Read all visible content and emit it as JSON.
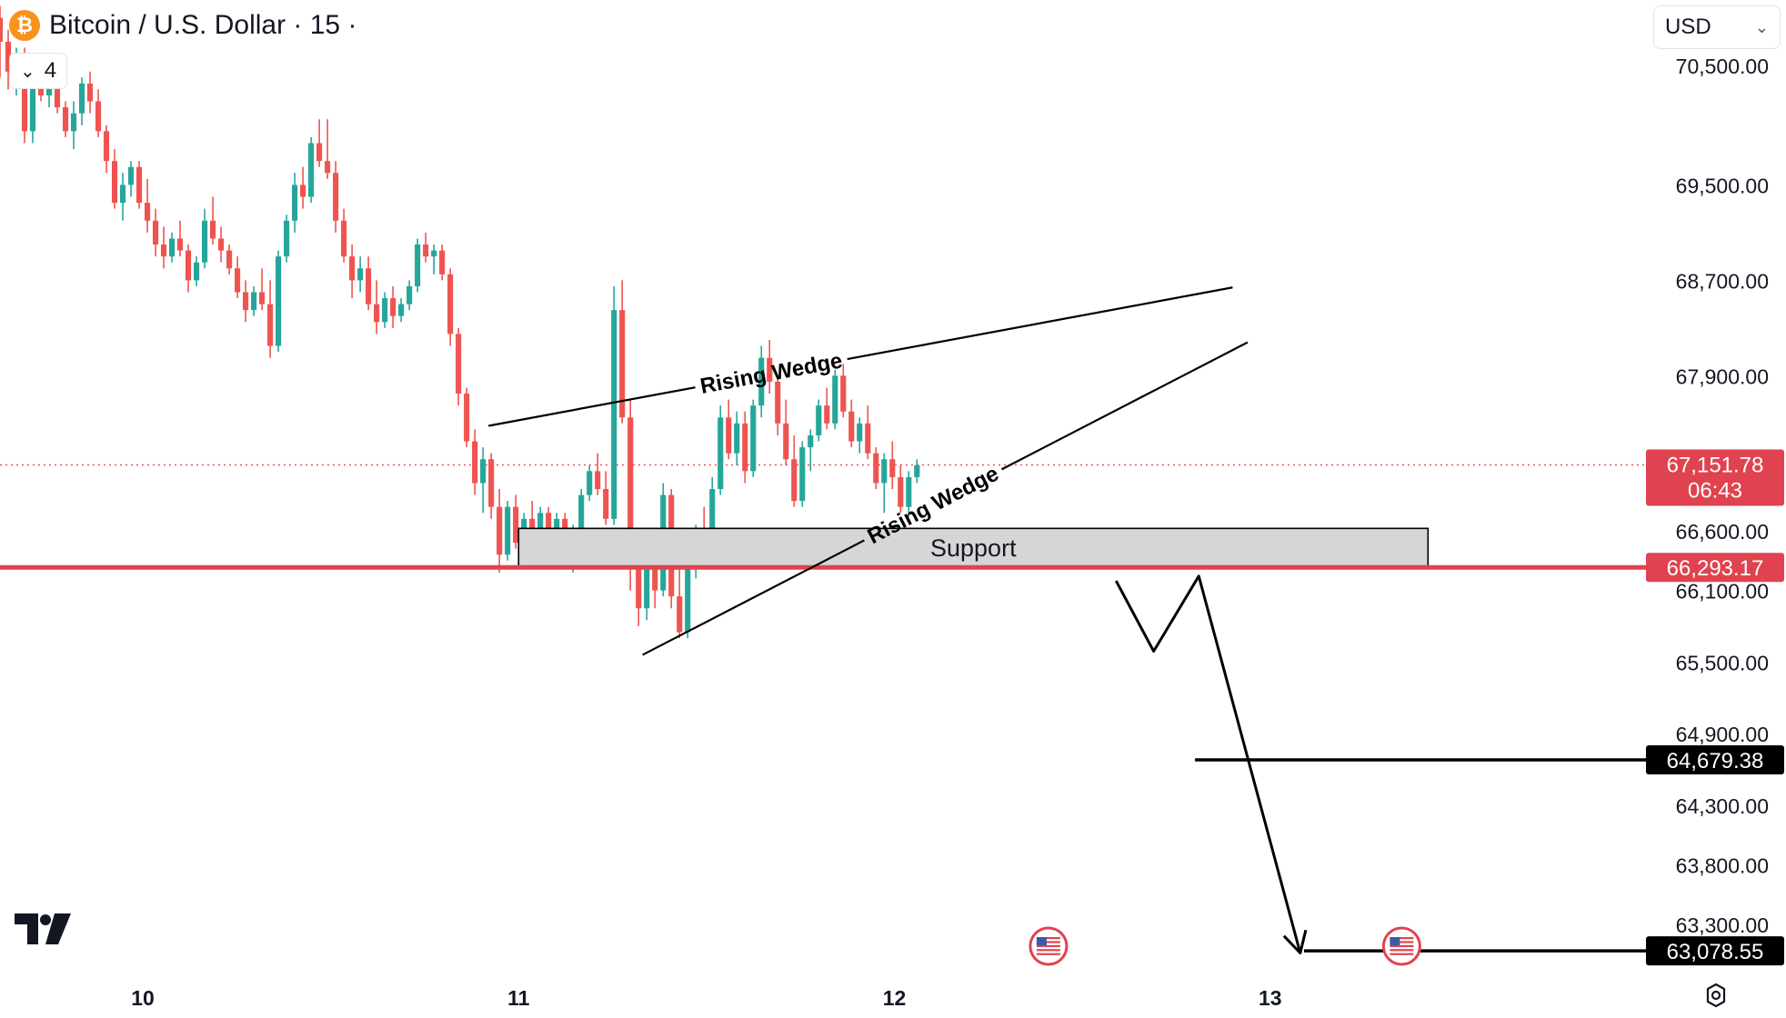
{
  "header": {
    "title": "Bitcoin / U.S. Dollar · 15 ·",
    "icon": "bitcoin-icon",
    "collapse_count": "4"
  },
  "currency_select": {
    "value": "USD"
  },
  "colors": {
    "up": "#26a69a",
    "down": "#ef5350",
    "support_line": "#e0434f",
    "support_zone": "#d6d6d6",
    "label_black": "#000000"
  },
  "chart_data": {
    "type": "candlestick",
    "x_ticks": [
      "10",
      "11",
      "12",
      "13"
    ],
    "y_ticks": [
      70500,
      69500,
      68700,
      67900,
      66600,
      66100,
      65500,
      64900,
      64300,
      63800,
      63300
    ],
    "y_tick_labels": [
      "70,500.00",
      "69,500.00",
      "68,700.00",
      "67,900.00",
      "66,600.00",
      "66,100.00",
      "65,500.00",
      "64,900.00",
      "64,300.00",
      "63,800.00",
      "63,300.00"
    ],
    "price_labels": [
      {
        "value": 67151.78,
        "text": "67,151.78",
        "sub": "06:43",
        "style": "last-price"
      },
      {
        "value": 66293.17,
        "text": "66,293.17",
        "style": "support"
      },
      {
        "value": 64679.38,
        "text": "64,679.38",
        "style": "target"
      },
      {
        "value": 63078.55,
        "text": "63,078.55",
        "style": "target"
      }
    ],
    "current_price": 67151.78,
    "countdown": "06:43",
    "support_level": 66293.17,
    "support_zone": {
      "low": 66293.17,
      "high": 66620,
      "from_day": 11.0,
      "to_day": 13.42,
      "label": "Support"
    },
    "targets": [
      64679.38,
      63078.55
    ],
    "annotations": [
      {
        "label": "Rising Wedge",
        "line": "upper",
        "from": [
          10.92,
          67480
        ],
        "to": [
          12.9,
          68640
        ]
      },
      {
        "label": "Rising Wedge",
        "line": "lower",
        "from": [
          11.33,
          65560
        ],
        "to": [
          12.94,
          68180
        ]
      }
    ],
    "projection_path": [
      [
        12.59,
        66180
      ],
      [
        12.69,
        65590
      ],
      [
        12.81,
        66220
      ],
      [
        13.08,
        63060
      ]
    ],
    "events": [
      {
        "day": 12.41,
        "icon": "us-flag-icon"
      },
      {
        "day": 13.35,
        "icon": "us-flag-icon"
      }
    ],
    "x_range": [
      9.62,
      14.0
    ],
    "y_range": [
      62820,
      71050
    ],
    "ohlc": [
      [
        70900,
        71000,
        70400,
        70700
      ],
      [
        70700,
        70800,
        70300,
        70450
      ],
      [
        70450,
        70650,
        70250,
        70600
      ],
      [
        70600,
        70650,
        69850,
        69950
      ],
      [
        69950,
        70500,
        69850,
        70400
      ],
      [
        70400,
        70500,
        70200,
        70250
      ],
      [
        70250,
        70500,
        70150,
        70450
      ],
      [
        70450,
        70500,
        70100,
        70150
      ],
      [
        70150,
        70200,
        69900,
        69950
      ],
      [
        69950,
        70200,
        69800,
        70100
      ],
      [
        70100,
        70400,
        70000,
        70350
      ],
      [
        70350,
        70450,
        70100,
        70200
      ],
      [
        70200,
        70300,
        69900,
        69950
      ],
      [
        69950,
        70000,
        69600,
        69700
      ],
      [
        69700,
        69800,
        69300,
        69350
      ],
      [
        69350,
        69600,
        69200,
        69500
      ],
      [
        69500,
        69700,
        69400,
        69650
      ],
      [
        69650,
        69700,
        69300,
        69350
      ],
      [
        69350,
        69550,
        69100,
        69200
      ],
      [
        69200,
        69300,
        68900,
        69000
      ],
      [
        69000,
        69150,
        68800,
        68900
      ],
      [
        68900,
        69100,
        68850,
        69050
      ],
      [
        69050,
        69200,
        68900,
        68950
      ],
      [
        68950,
        69000,
        68600,
        68700
      ],
      [
        68700,
        68900,
        68650,
        68850
      ],
      [
        68850,
        69300,
        68800,
        69200
      ],
      [
        69200,
        69400,
        69000,
        69050
      ],
      [
        69050,
        69150,
        68850,
        68950
      ],
      [
        68950,
        69000,
        68750,
        68800
      ],
      [
        68800,
        68900,
        68550,
        68600
      ],
      [
        68600,
        68700,
        68350,
        68450
      ],
      [
        68450,
        68650,
        68400,
        68600
      ],
      [
        68600,
        68800,
        68450,
        68500
      ],
      [
        68500,
        68700,
        68050,
        68150
      ],
      [
        68150,
        68950,
        68100,
        68900
      ],
      [
        68900,
        69250,
        68850,
        69200
      ],
      [
        69200,
        69600,
        69100,
        69500
      ],
      [
        69500,
        69650,
        69300,
        69400
      ],
      [
        69400,
        69900,
        69350,
        69850
      ],
      [
        69850,
        70050,
        69650,
        69700
      ],
      [
        69700,
        70050,
        69550,
        69600
      ],
      [
        69600,
        69700,
        69100,
        69200
      ],
      [
        69200,
        69300,
        68850,
        68900
      ],
      [
        68900,
        69000,
        68550,
        68700
      ],
      [
        68700,
        68900,
        68600,
        68800
      ],
      [
        68800,
        68900,
        68450,
        68500
      ],
      [
        68500,
        68700,
        68250,
        68350
      ],
      [
        68350,
        68600,
        68300,
        68550
      ],
      [
        68550,
        68650,
        68300,
        68400
      ],
      [
        68400,
        68550,
        68350,
        68500
      ],
      [
        68500,
        68700,
        68450,
        68650
      ],
      [
        68650,
        69050,
        68600,
        69000
      ],
      [
        69000,
        69100,
        68850,
        68900
      ],
      [
        68900,
        69000,
        68750,
        68950
      ],
      [
        68950,
        69000,
        68700,
        68750
      ],
      [
        68750,
        68800,
        68150,
        68250
      ],
      [
        68250,
        68300,
        67650,
        67750
      ],
      [
        67750,
        67800,
        67300,
        67350
      ],
      [
        67350,
        67450,
        66900,
        67000
      ],
      [
        67000,
        67300,
        66750,
        67200
      ],
      [
        67200,
        67250,
        66700,
        66800
      ],
      [
        66800,
        66950,
        66250,
        66400
      ],
      [
        66400,
        66850,
        66350,
        66800
      ],
      [
        66800,
        66900,
        66450,
        66500
      ],
      [
        66500,
        66750,
        66400,
        66700
      ],
      [
        66700,
        66850,
        66550,
        66600
      ],
      [
        66600,
        66800,
        66550,
        66750
      ],
      [
        66750,
        66800,
        66500,
        66550
      ],
      [
        66550,
        66750,
        66450,
        66700
      ],
      [
        66700,
        66750,
        66350,
        66400
      ],
      [
        66400,
        66650,
        66250,
        66600
      ],
      [
        66600,
        66950,
        66550,
        66900
      ],
      [
        66900,
        67150,
        66850,
        67100
      ],
      [
        67100,
        67250,
        66900,
        66950
      ],
      [
        66950,
        67100,
        66650,
        66700
      ],
      [
        66700,
        68650,
        66650,
        68450
      ],
      [
        68450,
        68700,
        67500,
        67550
      ],
      [
        67550,
        67700,
        66100,
        66300
      ],
      [
        66300,
        66600,
        65800,
        65950
      ],
      [
        65950,
        66400,
        65850,
        66300
      ],
      [
        66300,
        66400,
        65950,
        66100
      ],
      [
        66100,
        67000,
        66050,
        66900
      ],
      [
        66900,
        66950,
        65950,
        66050
      ],
      [
        66050,
        66300,
        65700,
        65750
      ],
      [
        65750,
        66500,
        65700,
        66400
      ],
      [
        66400,
        66650,
        66200,
        66600
      ],
      [
        66600,
        66800,
        66500,
        66550
      ],
      [
        66550,
        67050,
        66500,
        66950
      ],
      [
        66950,
        67650,
        66900,
        67550
      ],
      [
        67550,
        67700,
        67200,
        67250
      ],
      [
        67250,
        67600,
        67150,
        67500
      ],
      [
        67500,
        67600,
        67000,
        67100
      ],
      [
        67100,
        67700,
        67050,
        67650
      ],
      [
        67650,
        68150,
        67550,
        68050
      ],
      [
        68050,
        68200,
        67750,
        67850
      ],
      [
        67850,
        67900,
        67400,
        67500
      ],
      [
        67500,
        67700,
        67150,
        67200
      ],
      [
        67200,
        67400,
        66800,
        66850
      ],
      [
        66850,
        67350,
        66800,
        67300
      ],
      [
        67300,
        67450,
        67100,
        67400
      ],
      [
        67400,
        67700,
        67350,
        67650
      ],
      [
        67650,
        67800,
        67450,
        67500
      ],
      [
        67500,
        67950,
        67450,
        67900
      ],
      [
        67900,
        68000,
        67550,
        67600
      ],
      [
        67600,
        67700,
        67300,
        67350
      ],
      [
        67350,
        67550,
        67250,
        67500
      ],
      [
        67500,
        67650,
        67200,
        67250
      ],
      [
        67250,
        67300,
        66950,
        67000
      ],
      [
        67000,
        67250,
        66750,
        67200
      ],
      [
        67200,
        67350,
        66950,
        67050
      ],
      [
        67050,
        67150,
        66750,
        66800
      ],
      [
        66800,
        67100,
        66750,
        67050
      ],
      [
        67050,
        67200,
        67000,
        67150
      ]
    ]
  }
}
